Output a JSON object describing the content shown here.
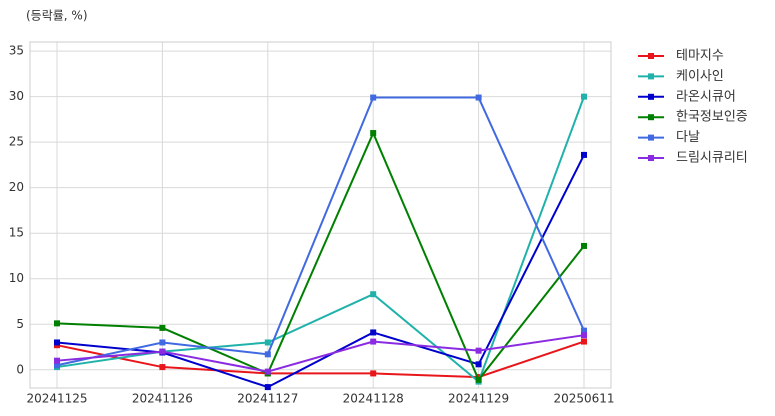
{
  "chart_data": {
    "type": "line",
    "ylabel": "(등락률, %)",
    "categories": [
      "20241125",
      "20241126",
      "20241127",
      "20241128",
      "20241129",
      "20250611"
    ],
    "series": [
      {
        "name": "테마지수",
        "color": "#e8161b",
        "values": [
          2.7,
          0.3,
          -0.4,
          -0.4,
          -0.8,
          3.1
        ]
      },
      {
        "name": "케이사인",
        "color": "#20b2aa",
        "values": [
          0.3,
          2.0,
          3.0,
          8.3,
          -1.3,
          30.0
        ]
      },
      {
        "name": "라온시큐어",
        "color": "#0000cd",
        "values": [
          3.0,
          1.9,
          -1.9,
          4.1,
          0.6,
          23.6
        ]
      },
      {
        "name": "한국정보인증",
        "color": "#008000",
        "values": [
          5.1,
          4.6,
          -0.4,
          26.0,
          -1.1,
          13.6
        ]
      },
      {
        "name": "다날",
        "color": "#4169e1",
        "values": [
          0.5,
          3.0,
          1.7,
          29.9,
          29.9,
          4.3
        ]
      },
      {
        "name": "드림시큐리티",
        "color": "#8a2be2",
        "values": [
          1.0,
          2.0,
          -0.2,
          3.1,
          2.1,
          3.8
        ]
      }
    ],
    "ylim": [
      -2,
      36
    ],
    "yticks": [
      0,
      5,
      10,
      15,
      20,
      25,
      30,
      35
    ],
    "grid": true,
    "legend": "outside-right"
  }
}
